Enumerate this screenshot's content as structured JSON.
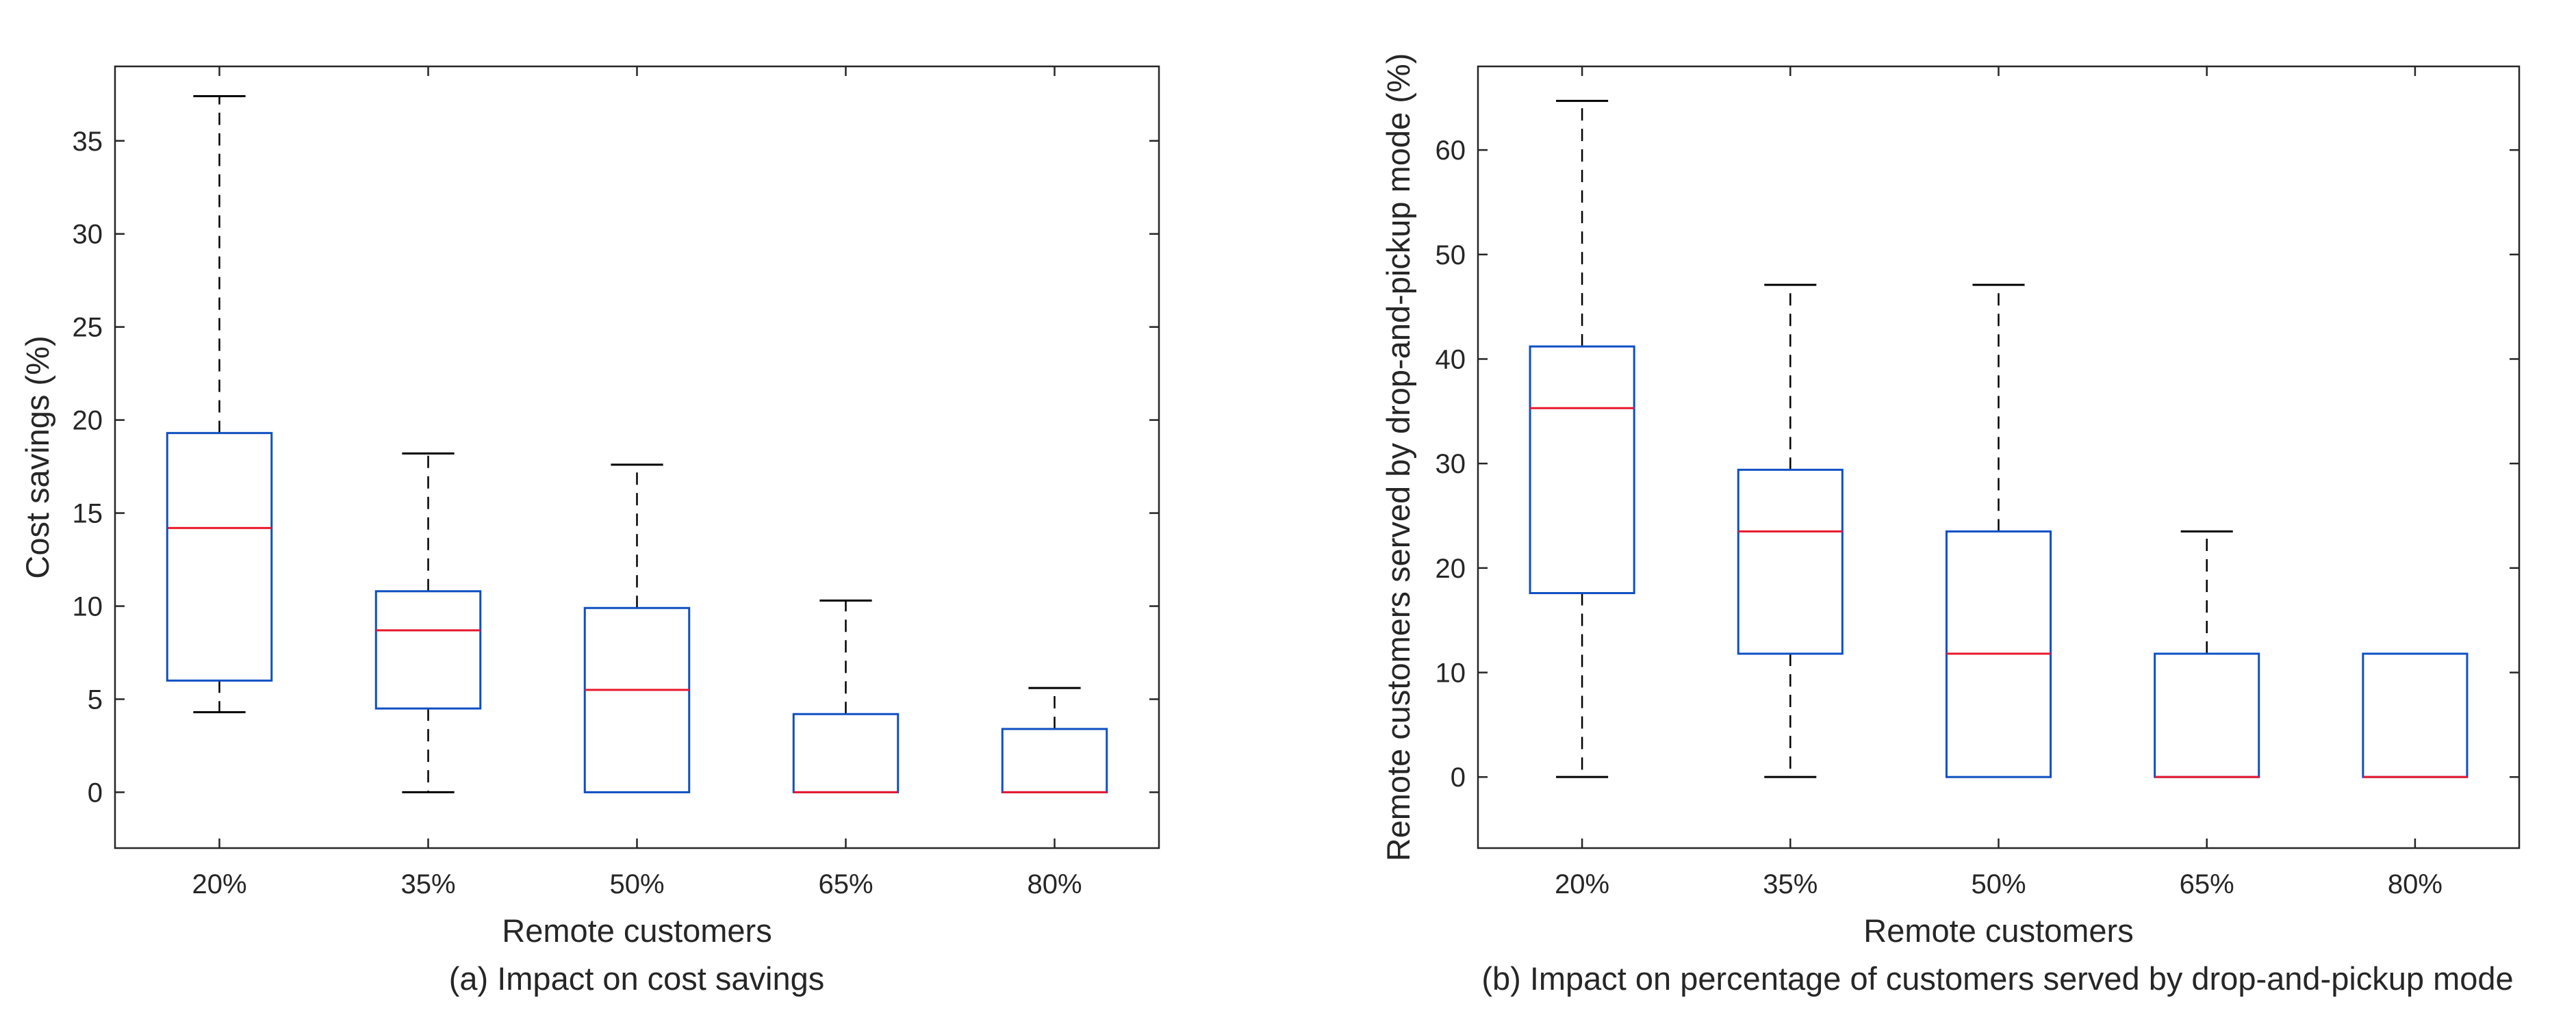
{
  "chart_data": [
    {
      "type": "boxplot",
      "caption": "(a) Impact on cost savings",
      "xlabel": "Remote customers",
      "ylabel": "Cost savings (%)",
      "ylim": [
        -3,
        39
      ],
      "yticks": [
        0,
        5,
        10,
        15,
        20,
        25,
        30,
        35
      ],
      "categories": [
        "20%",
        "35%",
        "50%",
        "65%",
        "80%"
      ],
      "boxes": [
        {
          "whisker_low": 4.3,
          "q1": 6.0,
          "median": 14.2,
          "q3": 19.3,
          "whisker_high": 37.4
        },
        {
          "whisker_low": 0.0,
          "q1": 4.5,
          "median": 8.7,
          "q3": 10.8,
          "whisker_high": 18.2
        },
        {
          "whisker_low": 0.0,
          "q1": 0.0,
          "median": 5.5,
          "q3": 9.9,
          "whisker_high": 17.6
        },
        {
          "whisker_low": 0.0,
          "q1": 0.0,
          "median": 0.0,
          "q3": 4.2,
          "whisker_high": 10.3
        },
        {
          "whisker_low": 0.0,
          "q1": 0.0,
          "median": 0.0,
          "q3": 3.4,
          "whisker_high": 5.6
        }
      ]
    },
    {
      "type": "boxplot",
      "caption": "(b) Impact on percentage of customers served by drop-and-pickup mode",
      "xlabel": "Remote customers",
      "ylabel": "Remote customers served by drop-and-pickup mode (%)",
      "ylim": [
        -6.8,
        68
      ],
      "yticks": [
        0,
        10,
        20,
        30,
        40,
        50,
        60
      ],
      "categories": [
        "20%",
        "35%",
        "50%",
        "65%",
        "80%"
      ],
      "boxes": [
        {
          "whisker_low": 0.0,
          "q1": 17.6,
          "median": 35.3,
          "q3": 41.2,
          "whisker_high": 64.7
        },
        {
          "whisker_low": 0.0,
          "q1": 11.8,
          "median": 23.5,
          "q3": 29.4,
          "whisker_high": 47.1
        },
        {
          "whisker_low": 0.0,
          "q1": 0.0,
          "median": 11.8,
          "q3": 23.5,
          "whisker_high": 47.1
        },
        {
          "whisker_low": 0.0,
          "q1": 0.0,
          "median": 0.0,
          "q3": 11.8,
          "whisker_high": 23.5
        },
        {
          "whisker_low": 0.0,
          "q1": 0.0,
          "median": 0.0,
          "q3": 11.8,
          "whisker_high": 11.8
        }
      ]
    }
  ],
  "colors": {
    "box": "#0f4fc2",
    "median": "#e8192c",
    "whisker": "#000000",
    "axis": "#262626"
  }
}
